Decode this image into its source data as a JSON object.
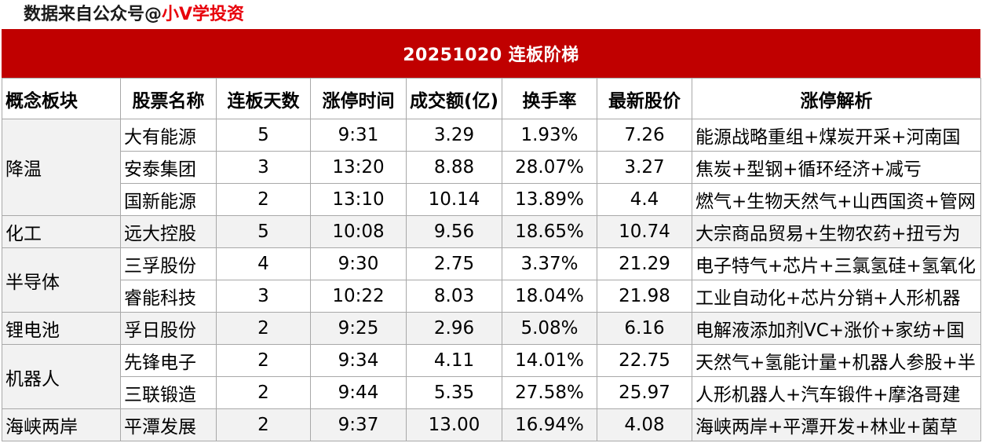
{
  "source": {
    "prefix": "数据来自公众号@",
    "brand": "小V学投资"
  },
  "title": "20251020  连板阶梯",
  "columns": [
    "概念板块",
    "股票名称",
    "连板天数",
    "涨停时间",
    "成交额(亿)",
    "换手率",
    "最新股价",
    "涨停解析"
  ],
  "sectors": [
    {
      "name": "降温",
      "rows": [
        {
          "stock": "大有能源",
          "days": "5",
          "time": "9:31",
          "amount": "3.29",
          "turnover": "1.93%",
          "price": "7.26",
          "analysis": "能源战略重组+煤炭开采+河南国"
        },
        {
          "stock": "安泰集团",
          "days": "3",
          "time": "13:20",
          "amount": "8.88",
          "turnover": "28.07%",
          "price": "3.27",
          "analysis": "焦炭+型钢+循环经济+减亏"
        },
        {
          "stock": "国新能源",
          "days": "2",
          "time": "13:10",
          "amount": "10.14",
          "turnover": "13.89%",
          "price": "4.4",
          "analysis": "燃气+生物天然气+山西国资+管网"
        }
      ]
    },
    {
      "name": "化工",
      "rows": [
        {
          "stock": "远大控股",
          "days": "5",
          "time": "10:08",
          "amount": "9.56",
          "turnover": "18.65%",
          "price": "10.74",
          "analysis": "大宗商品贸易+生物农药+扭亏为"
        }
      ]
    },
    {
      "name": "半导体",
      "rows": [
        {
          "stock": "三孚股份",
          "days": "4",
          "time": "9:30",
          "amount": "2.75",
          "turnover": "3.37%",
          "price": "21.29",
          "analysis": "电子特气+芯片+三氯氢硅+氢氧化"
        },
        {
          "stock": "睿能科技",
          "days": "3",
          "time": "10:22",
          "amount": "8.03",
          "turnover": "18.04%",
          "price": "21.98",
          "analysis": "工业自动化+芯片分销+人形机器"
        }
      ]
    },
    {
      "name": "锂电池",
      "rows": [
        {
          "stock": "孚日股份",
          "days": "2",
          "time": "9:25",
          "amount": "2.96",
          "turnover": "5.08%",
          "price": "6.16",
          "analysis": "电解液添加剂VC+涨价+家纺+国"
        }
      ]
    },
    {
      "name": "机器人",
      "rows": [
        {
          "stock": "先锋电子",
          "days": "2",
          "time": "9:34",
          "amount": "4.11",
          "turnover": "14.01%",
          "price": "22.75",
          "analysis": "天然气+氢能计量+机器人参股+半"
        },
        {
          "stock": "三联锻造",
          "days": "2",
          "time": "9:44",
          "amount": "5.35",
          "turnover": "27.58%",
          "price": "25.97",
          "analysis": "人形机器人+汽车锻件+摩洛哥建"
        }
      ]
    },
    {
      "name": "海峡两岸",
      "rows": [
        {
          "stock": "平潭发展",
          "days": "2",
          "time": "9:37",
          "amount": "13.00",
          "turnover": "16.94%",
          "price": "4.08",
          "analysis": "海峡两岸+平潭开发+林业+菌草"
        }
      ]
    }
  ],
  "colors": {
    "header_bg": "#c00000",
    "brand_text": "#e8000b",
    "sector_bg": "#f2f2f2"
  }
}
